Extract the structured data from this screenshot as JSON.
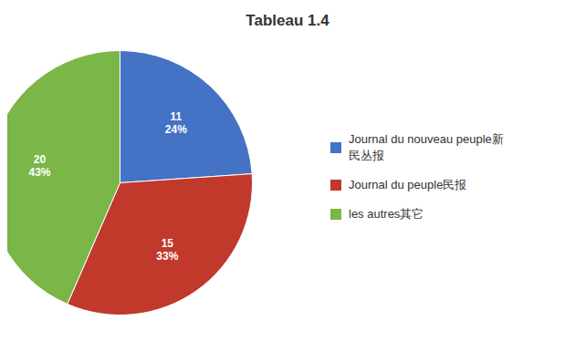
{
  "chart_data": {
    "type": "pie",
    "title": "Tableau 1.4",
    "categories": [
      "Journal du nouveau peuple新\n民丛报",
      "Journal du peuple民报",
      "les autres其它"
    ],
    "values": [
      11,
      15,
      20
    ],
    "value_labels": [
      "11\n24%",
      "15\n33%",
      "20\n43%"
    ],
    "colors": [
      "#4472c4",
      "#c0392b",
      "#7ab648"
    ],
    "data_labels": true,
    "legend": "right"
  }
}
